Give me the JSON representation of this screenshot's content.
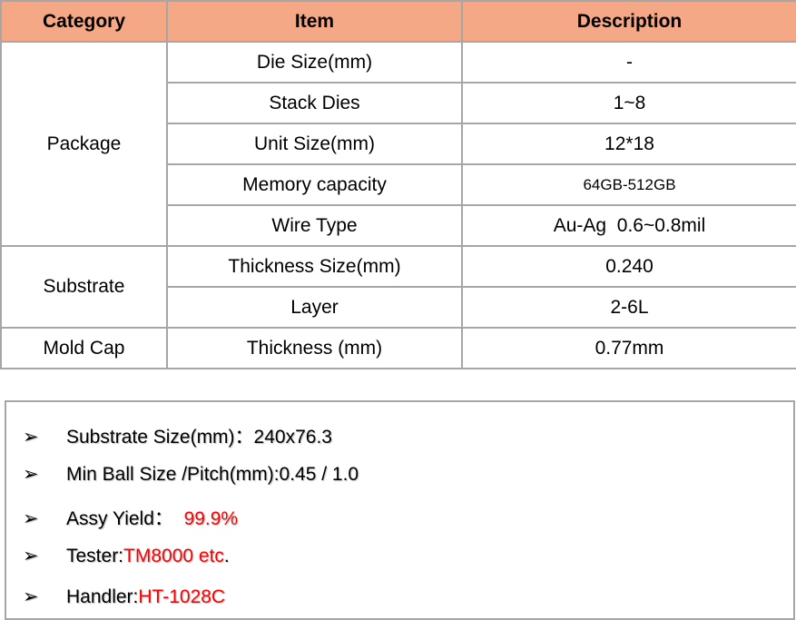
{
  "table": {
    "headers": [
      "Category",
      "Item",
      "Description"
    ],
    "header_color": "#f4a886",
    "groups": [
      {
        "category": "Package",
        "rows": [
          {
            "item": "Die Size(mm)",
            "description": "-"
          },
          {
            "item": "Stack Dies",
            "description": "1~8"
          },
          {
            "item": "Unit Size(mm)",
            "description": "12*18"
          },
          {
            "item": "Memory capacity",
            "description": "64GB-512GB"
          },
          {
            "item": "Wire Type",
            "description": "Au-Ag  0.6~0.8mil"
          }
        ]
      },
      {
        "category": "Substrate",
        "rows": [
          {
            "item": "Thickness Size(mm)",
            "description": "0.240"
          },
          {
            "item": "Layer",
            "description": "2-6L"
          }
        ]
      },
      {
        "category": "Mold Cap",
        "rows": [
          {
            "item": "Thickness (mm)",
            "description": "0.77mm"
          }
        ]
      }
    ]
  },
  "bullets": {
    "icon": "arrowhead-bullet-icon",
    "glyph": "➢",
    "highlight_color": "#ff0000",
    "items": [
      {
        "label": "Substrate Size(mm)：",
        "value": "240x76.3",
        "suffix": ""
      },
      {
        "label": "Min Ball Size /Pitch(mm):",
        "value": "0.45 / 1.0",
        "suffix": ""
      },
      {
        "label": "Assy Yield：  ",
        "value": "99.9%",
        "suffix": ""
      },
      {
        "label": "Tester:",
        "value": "TM8000 etc",
        "suffix": "."
      },
      {
        "label": "Handler:",
        "value": "HT-1028C",
        "suffix": ""
      }
    ]
  }
}
